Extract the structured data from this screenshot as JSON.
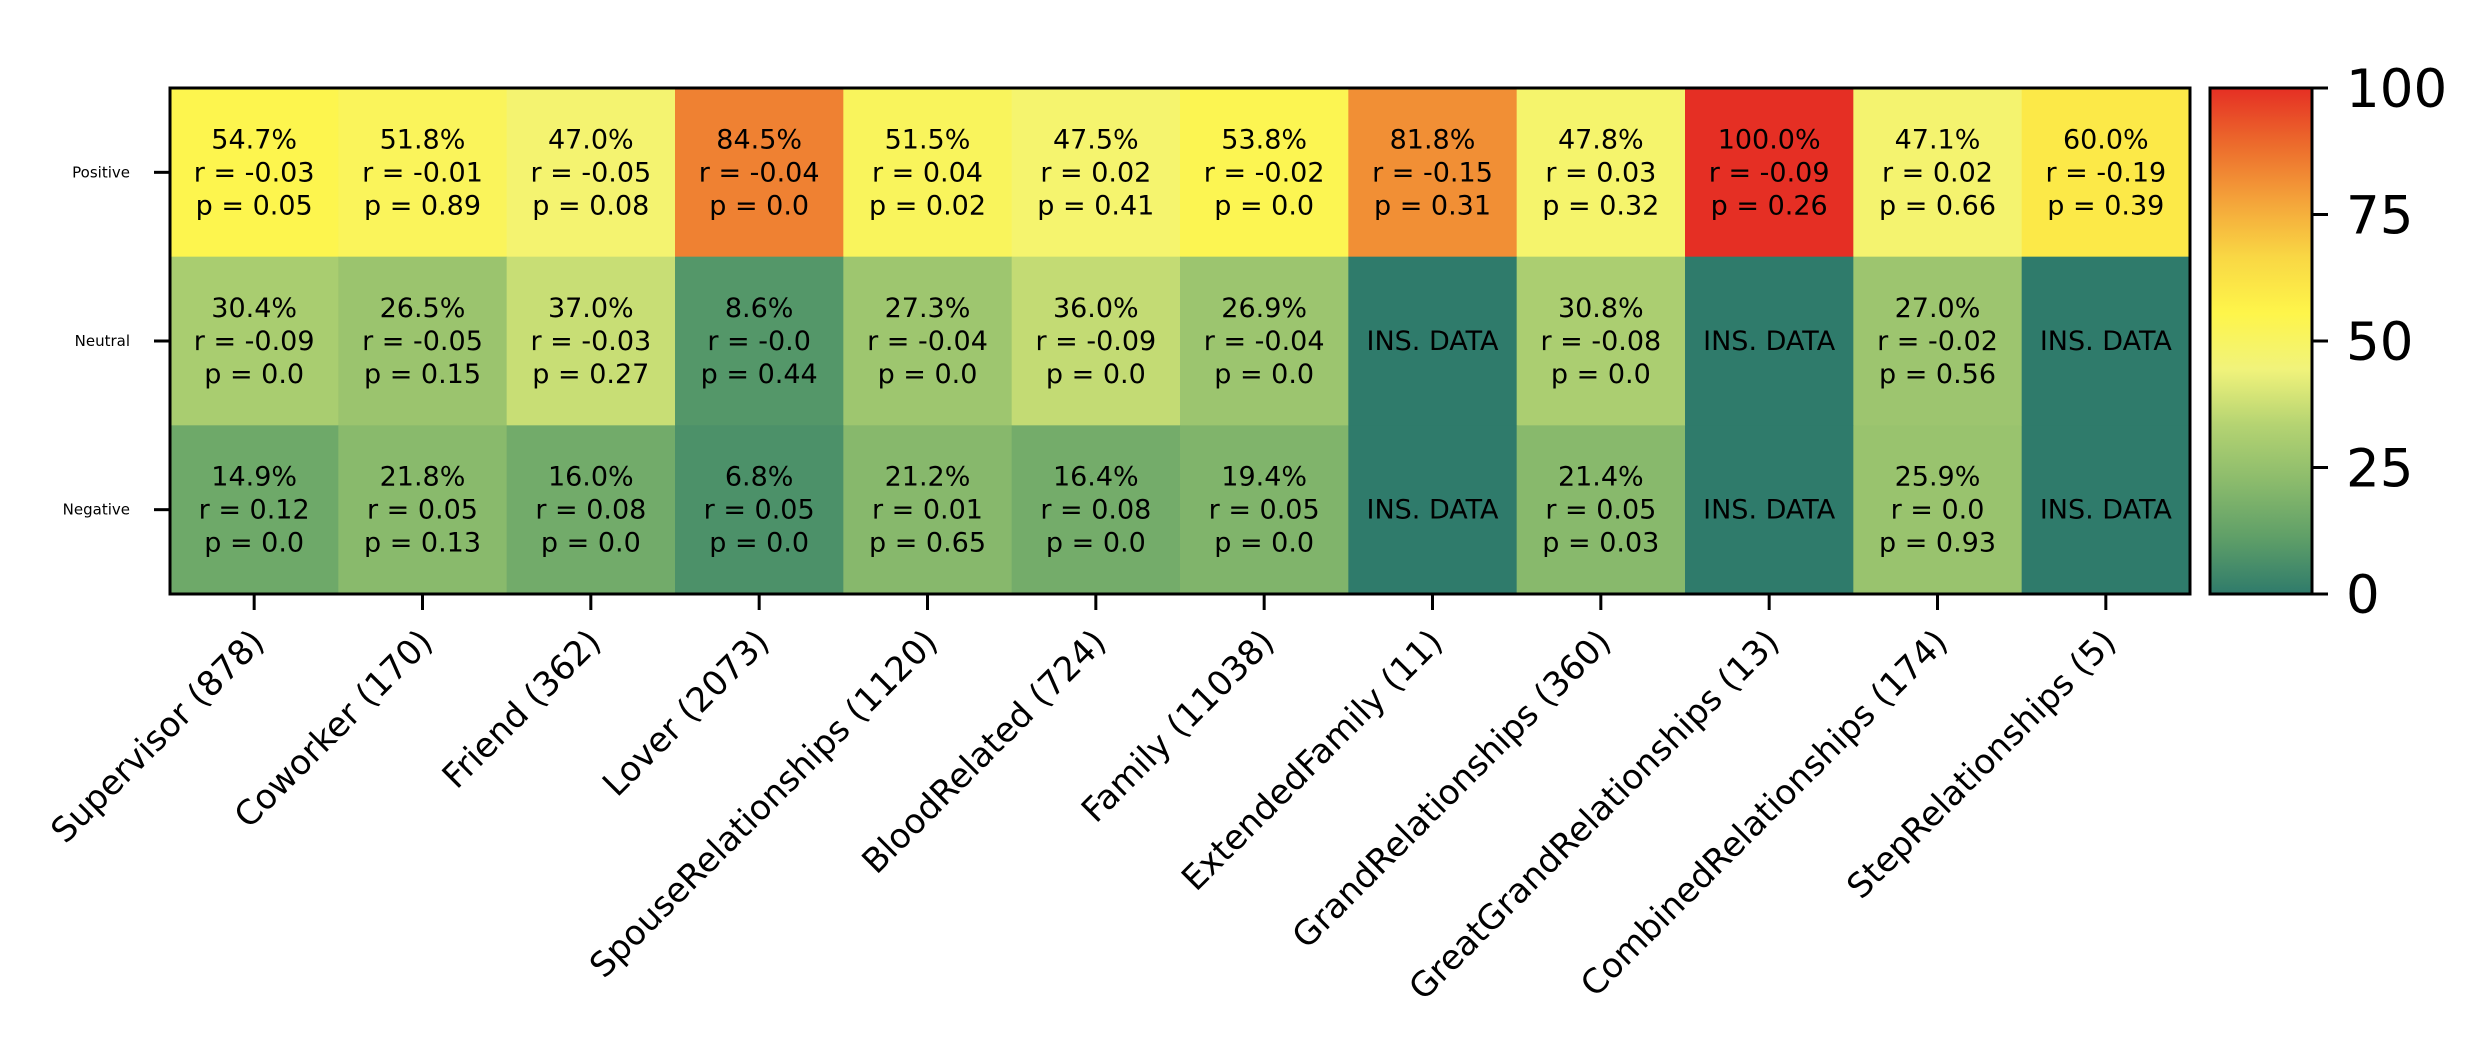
{
  "chart_data": {
    "type": "heatmap",
    "rows": [
      "Positive",
      "Neutral",
      "Negative"
    ],
    "columns": [
      "Supervisor (878)",
      "Coworker (170)",
      "Friend (362)",
      "Lover (2073)",
      "SpouseRelationships (1120)",
      "BloodRelated (724)",
      "Family (11038)",
      "ExtendedFamily (11)",
      "GrandRelationships (360)",
      "GreatGrandRelationships (13)",
      "CombinedRelationships (174)",
      "StepRelationships (5)"
    ],
    "values": [
      [
        54.7,
        51.8,
        47.0,
        84.5,
        51.5,
        47.5,
        53.8,
        81.8,
        47.8,
        100.0,
        47.1,
        60.0
      ],
      [
        30.4,
        26.5,
        37.0,
        8.6,
        27.3,
        36.0,
        26.9,
        null,
        30.8,
        null,
        27.0,
        null
      ],
      [
        14.9,
        21.8,
        16.0,
        6.8,
        21.2,
        16.4,
        19.4,
        null,
        21.4,
        null,
        25.9,
        null
      ]
    ],
    "cell_labels": [
      [
        [
          "54.7%",
          "r = -0.03",
          "p = 0.05"
        ],
        [
          "51.8%",
          "r = -0.01",
          "p = 0.89"
        ],
        [
          "47.0%",
          "r = -0.05",
          "p = 0.08"
        ],
        [
          "84.5%",
          "r = -0.04",
          "p = 0.0"
        ],
        [
          "51.5%",
          "r = 0.04",
          "p = 0.02"
        ],
        [
          "47.5%",
          "r = 0.02",
          "p = 0.41"
        ],
        [
          "53.8%",
          "r = -0.02",
          "p = 0.0"
        ],
        [
          "81.8%",
          "r = -0.15",
          "p = 0.31"
        ],
        [
          "47.8%",
          "r = 0.03",
          "p = 0.32"
        ],
        [
          "100.0%",
          "r = -0.09",
          "p = 0.26"
        ],
        [
          "47.1%",
          "r = 0.02",
          "p = 0.66"
        ],
        [
          "60.0%",
          "r = -0.19",
          "p = 0.39"
        ]
      ],
      [
        [
          "30.4%",
          "r = -0.09",
          "p = 0.0"
        ],
        [
          "26.5%",
          "r = -0.05",
          "p = 0.15"
        ],
        [
          "37.0%",
          "r = -0.03",
          "p = 0.27"
        ],
        [
          "8.6%",
          "r = -0.0",
          "p = 0.44"
        ],
        [
          "27.3%",
          "r = -0.04",
          "p = 0.0"
        ],
        [
          "36.0%",
          "r = -0.09",
          "p = 0.0"
        ],
        [
          "26.9%",
          "r = -0.04",
          "p = 0.0"
        ],
        [
          "INS. DATA"
        ],
        [
          "30.8%",
          "r = -0.08",
          "p = 0.0"
        ],
        [
          "INS. DATA"
        ],
        [
          "27.0%",
          "r = -0.02",
          "p = 0.56"
        ],
        [
          "INS. DATA"
        ]
      ],
      [
        [
          "14.9%",
          "r = 0.12",
          "p = 0.0"
        ],
        [
          "21.8%",
          "r = 0.05",
          "p = 0.13"
        ],
        [
          "16.0%",
          "r = 0.08",
          "p = 0.0"
        ],
        [
          "6.8%",
          "r = 0.05",
          "p = 0.0"
        ],
        [
          "21.2%",
          "r = 0.01",
          "p = 0.65"
        ],
        [
          "16.4%",
          "r = 0.08",
          "p = 0.0"
        ],
        [
          "19.4%",
          "r = 0.05",
          "p = 0.0"
        ],
        [
          "INS. DATA"
        ],
        [
          "21.4%",
          "r = 0.05",
          "p = 0.03"
        ],
        [
          "INS. DATA"
        ],
        [
          "25.9%",
          "r = 0.0",
          "p = 0.93"
        ],
        [
          "INS. DATA"
        ]
      ]
    ],
    "colorbar": {
      "min": 0,
      "max": 100,
      "ticks": [
        0,
        25,
        50,
        75,
        100
      ],
      "tick_labels": [
        "0",
        "25",
        "50",
        "75",
        "100"
      ],
      "colors": [
        "#2f7b6b",
        "#5f9f68",
        "#8bbb6c",
        "#b4d372",
        "#f1f37b",
        "#fef54a",
        "#f9d744",
        "#f4a33a",
        "#ec6b2c",
        "#e52f24"
      ]
    }
  }
}
